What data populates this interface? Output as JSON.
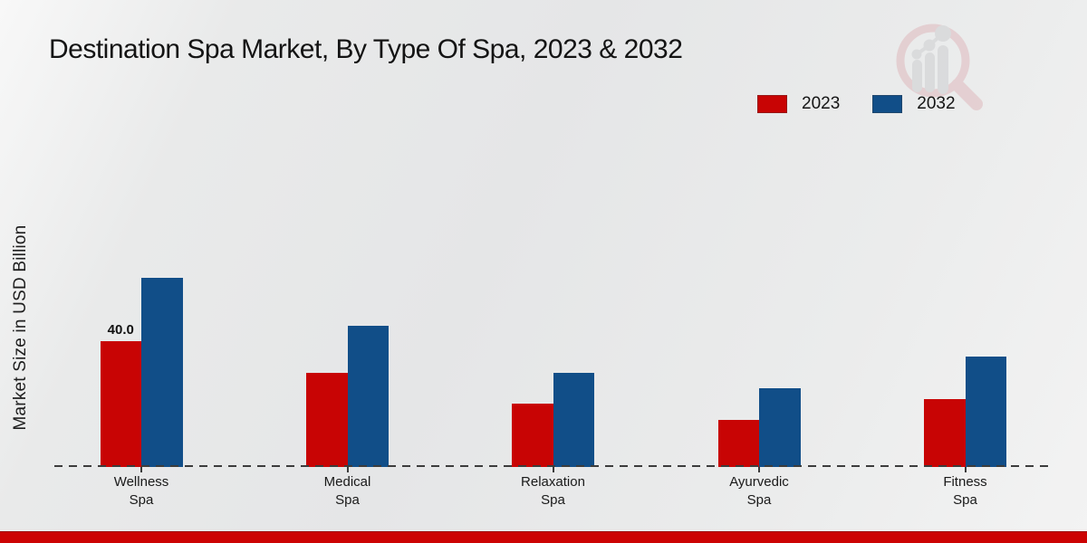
{
  "title": "Destination Spa Market, By Type Of Spa, 2023 & 2032",
  "y_axis_label": "Market Size in USD Billion",
  "legend": [
    {
      "label": "2023",
      "color": "#c80404"
    },
    {
      "label": "2032",
      "color": "#114e88"
    }
  ],
  "colors": {
    "series_2023": "#c80404",
    "series_2032": "#114e88",
    "footer_accent": "#cc0303",
    "baseline": "#3c3c3c"
  },
  "watermark_icon": "market-research-future-magnifier-logo",
  "chart_data": {
    "type": "bar",
    "categories": [
      "Wellness Spa",
      "Medical Spa",
      "Relaxation Spa",
      "Ayurvedic Spa",
      "Fitness Spa"
    ],
    "category_label_lines": [
      [
        "Wellness",
        "Spa"
      ],
      [
        "Medical",
        "Spa"
      ],
      [
        "Relaxation",
        "Spa"
      ],
      [
        "Ayurvedic",
        "Spa"
      ],
      [
        "Fitness",
        "Spa"
      ]
    ],
    "series": [
      {
        "name": "2023",
        "color": "#c80404",
        "values": [
          40,
          30,
          20,
          15,
          21.5
        ]
      },
      {
        "name": "2032",
        "color": "#114e88",
        "values": [
          60,
          45,
          30,
          25,
          35
        ]
      }
    ],
    "bar_value_labels": [
      {
        "series_index": 0,
        "category_index": 0,
        "text": "40.0"
      }
    ],
    "title": "Destination Spa Market, By Type Of Spa, 2023 & 2032",
    "xlabel": "",
    "ylabel": "Market Size in USD Billion",
    "ylim": [
      0,
      65
    ],
    "grid": false,
    "y_axis_ticks_visible": false,
    "legend_position": "top-right"
  }
}
